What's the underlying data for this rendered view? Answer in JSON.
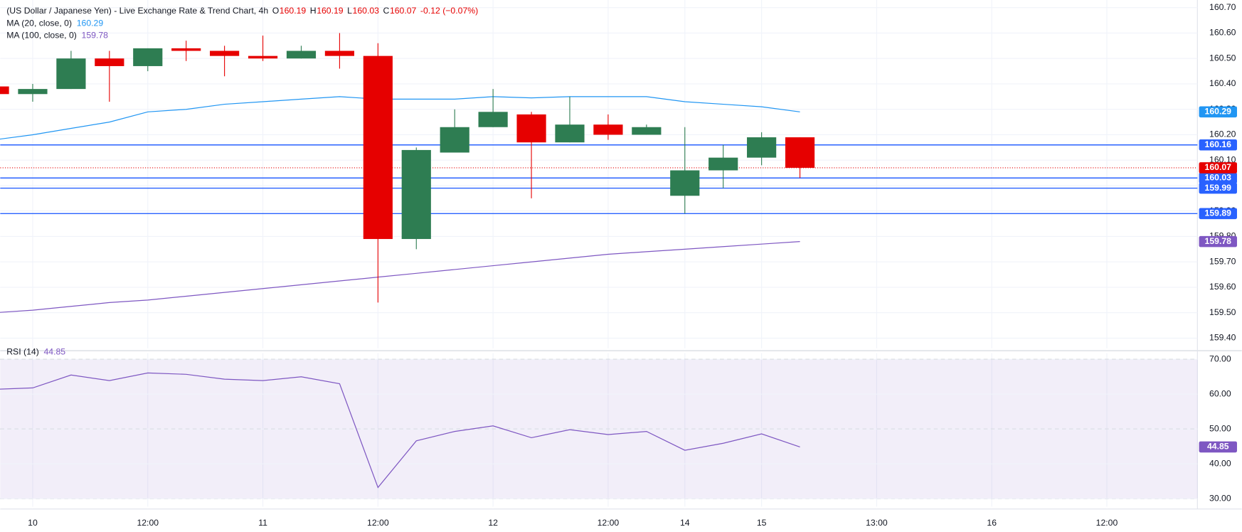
{
  "chart_data": [
    {
      "type": "candlestick",
      "title": "(US Dollar / Japanese Yen) - Live Exchange Rate & Trend Chart, 4h",
      "ohlc_labels": [
        "O",
        "H",
        "L",
        "C"
      ],
      "change": "-0.12 (−0.07%)",
      "categories": [
        null,
        "10",
        null,
        null,
        "12:00",
        null,
        null,
        "11",
        null,
        null,
        "12:00",
        null,
        null,
        "12",
        null,
        null,
        "12:00",
        null,
        "14",
        null,
        "15",
        null,
        null,
        "13:00",
        null,
        null,
        "16",
        null,
        null,
        "12:00",
        null
      ],
      "open": [
        160.39,
        160.36,
        160.38,
        160.5,
        160.47,
        160.54,
        160.53,
        160.51,
        160.5,
        160.53,
        160.51,
        159.79,
        160.13,
        160.23,
        160.28,
        160.17,
        160.24,
        160.2,
        159.96,
        160.06,
        160.11,
        160.19,
        null,
        null,
        null,
        null,
        null,
        null,
        null,
        null,
        null
      ],
      "high": [
        160.39,
        160.4,
        160.53,
        160.53,
        160.54,
        160.57,
        160.55,
        160.59,
        160.55,
        160.6,
        160.56,
        160.15,
        160.3,
        160.38,
        160.29,
        160.35,
        160.28,
        160.24,
        160.23,
        160.16,
        160.21,
        160.19,
        null,
        null,
        null,
        null,
        null,
        null,
        null,
        null,
        null
      ],
      "low": [
        160.36,
        160.33,
        160.38,
        160.33,
        160.45,
        160.49,
        160.43,
        160.49,
        160.5,
        160.46,
        159.54,
        159.75,
        160.13,
        160.23,
        159.95,
        160.17,
        160.18,
        160.2,
        159.89,
        159.99,
        160.08,
        160.03,
        null,
        null,
        null,
        null,
        null,
        null,
        null,
        null,
        null
      ],
      "close": [
        160.36,
        160.38,
        160.5,
        160.47,
        160.54,
        160.53,
        160.51,
        160.5,
        160.53,
        160.51,
        159.79,
        160.14,
        160.23,
        160.29,
        160.17,
        160.24,
        160.2,
        160.23,
        160.06,
        160.11,
        160.19,
        160.07,
        null,
        null,
        null,
        null,
        null,
        null,
        null,
        null,
        null
      ],
      "up_color": "#2e7d52",
      "down_color": "#e60000",
      "series": [
        {
          "name": "MA (20, close, 0)",
          "color": "#2196f3",
          "values": [
            160.18,
            160.2,
            160.225,
            160.25,
            160.29,
            160.3,
            160.32,
            160.33,
            160.34,
            160.35,
            160.34,
            160.34,
            160.34,
            160.35,
            160.345,
            160.35,
            160.35,
            160.35,
            160.33,
            160.32,
            160.31,
            160.29,
            null,
            null,
            null,
            null,
            null,
            null,
            null,
            null,
            null
          ]
        },
        {
          "name": "MA (100, close, 0)",
          "color": "#7e57c2",
          "values": [
            159.5,
            159.51,
            159.525,
            159.54,
            159.55,
            159.565,
            159.58,
            159.595,
            159.61,
            159.625,
            159.64,
            159.655,
            159.67,
            159.685,
            159.7,
            159.715,
            159.73,
            159.74,
            159.75,
            159.76,
            159.77,
            159.78,
            null,
            null,
            null,
            null,
            null,
            null,
            null,
            null,
            null
          ]
        }
      ],
      "levels": {
        "color": "#2962ff",
        "values": [
          160.16,
          160.03,
          159.99,
          159.89
        ]
      },
      "ylim": [
        159.36,
        160.73
      ],
      "yticks": [
        {
          "value": 160.7,
          "label": "160.70"
        },
        {
          "value": 160.6,
          "label": "160.60"
        },
        {
          "value": 160.5,
          "label": "160.50"
        },
        {
          "value": 160.4,
          "label": "160.40"
        },
        {
          "value": 160.3,
          "label": "160.30"
        },
        {
          "value": 160.2,
          "label": "160.20"
        },
        {
          "value": 160.1,
          "label": "160.10"
        },
        {
          "value": 160.0,
          "label": "160.00"
        },
        {
          "value": 159.9,
          "label": "159.90"
        },
        {
          "value": 159.8,
          "label": "159.80"
        },
        {
          "value": 159.7,
          "label": "159.70"
        },
        {
          "value": 159.6,
          "label": "159.60"
        },
        {
          "value": 159.5,
          "label": "159.50"
        },
        {
          "value": 159.4,
          "label": "159.40"
        }
      ],
      "grid": true
    },
    {
      "type": "line",
      "series": [
        {
          "name": "RSI (14)",
          "color": "#7e57c2",
          "values": [
            61.4,
            61.8,
            65.5,
            63.9,
            66.1,
            65.7,
            64.3,
            63.9,
            65.0,
            63.0,
            33.2,
            46.6,
            49.3,
            50.9,
            47.5,
            49.8,
            48.4,
            49.3,
            43.9,
            45.9,
            48.6,
            44.85,
            null,
            null,
            null,
            null,
            null,
            null,
            null,
            null,
            null
          ]
        }
      ],
      "band": [
        30,
        70
      ],
      "midline": 50,
      "ylim": [
        27.7,
        71.8
      ],
      "yticks": [
        {
          "value": 70,
          "label": "70.00"
        },
        {
          "value": 60,
          "label": "60.00"
        },
        {
          "value": 50,
          "label": "50.00"
        },
        {
          "value": 40,
          "label": "40.00"
        },
        {
          "value": 30,
          "label": "30.00"
        }
      ],
      "grid": true
    }
  ]
}
